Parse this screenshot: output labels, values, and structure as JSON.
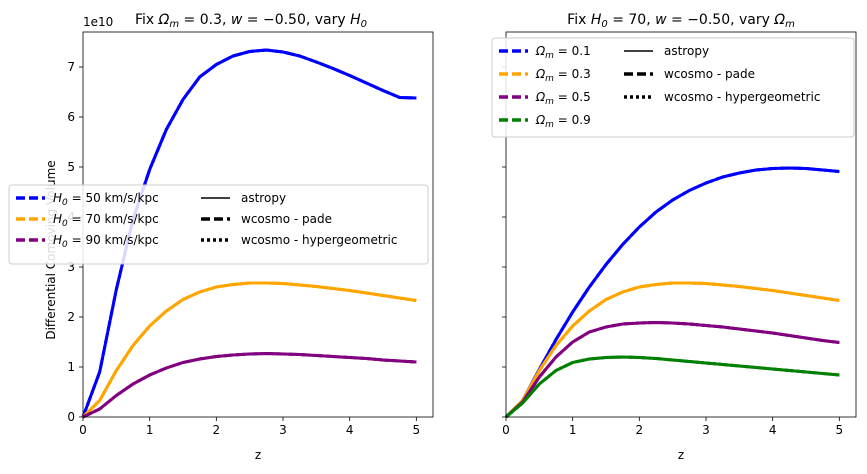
{
  "chart_data": [
    {
      "type": "line",
      "title": "Fix Ωm = 0.3, w = −0.50, vary H0",
      "title_parts": {
        "a": "Fix ",
        "om": "Ω",
        "om_sub": "m",
        "b": " = 0.3, ",
        "w": "w",
        "c": " = −0.50, vary ",
        "h": "H",
        "h_sub": "0"
      },
      "xlabel": "z",
      "ylabel": "Differential Comoving Volume",
      "exponent_label": "1e10",
      "xlim": [
        0,
        5.25
      ],
      "ylim": [
        0,
        7.7
      ],
      "xticks": [
        "0",
        "1",
        "2",
        "3",
        "4",
        "5"
      ],
      "yticks": [
        "0",
        "1",
        "2",
        "3",
        "4",
        "5",
        "6",
        "7"
      ],
      "legend_position": "center-left",
      "series": [
        {
          "name": "H0 = 50 km/s/kpc",
          "label_main": "H",
          "label_sub": "0",
          "label_rest": " = 50 km/s/kpc",
          "color": "#0000ff",
          "x": [
            0,
            0.25,
            0.5,
            0.75,
            1,
            1.25,
            1.5,
            1.75,
            2,
            2.25,
            2.5,
            2.75,
            3,
            3.25,
            3.5,
            3.75,
            4,
            4.25,
            4.5,
            4.75,
            5
          ],
          "y": [
            0,
            0.9,
            2.55,
            3.95,
            4.95,
            5.75,
            6.35,
            6.8,
            7.05,
            7.22,
            7.31,
            7.34,
            7.3,
            7.22,
            7.1,
            6.97,
            6.83,
            6.68,
            6.53,
            6.39,
            6.38
          ]
        },
        {
          "name": "H0 = 70 km/s/kpc",
          "label_main": "H",
          "label_sub": "0",
          "label_rest": " = 70 km/s/kpc",
          "color": "#ffa500",
          "x": [
            0,
            0.25,
            0.5,
            0.75,
            1,
            1.25,
            1.5,
            1.75,
            2,
            2.25,
            2.5,
            2.75,
            3,
            3.25,
            3.5,
            3.75,
            4,
            4.25,
            4.5,
            4.75,
            5
          ],
          "y": [
            0,
            0.33,
            0.93,
            1.43,
            1.82,
            2.12,
            2.35,
            2.5,
            2.6,
            2.65,
            2.68,
            2.68,
            2.67,
            2.64,
            2.61,
            2.57,
            2.53,
            2.48,
            2.43,
            2.38,
            2.33
          ]
        },
        {
          "name": "H0 = 90 km/s/kpc",
          "label_main": "H",
          "label_sub": "0",
          "label_rest": " = 90 km/s/kpc",
          "color": "#800080",
          "x": [
            0,
            0.25,
            0.5,
            0.75,
            1,
            1.25,
            1.5,
            1.75,
            2,
            2.25,
            2.5,
            2.75,
            3,
            3.25,
            3.5,
            3.75,
            4,
            4.25,
            4.5,
            4.75,
            5
          ],
          "y": [
            0,
            0.16,
            0.43,
            0.66,
            0.84,
            0.98,
            1.09,
            1.16,
            1.21,
            1.24,
            1.26,
            1.27,
            1.26,
            1.25,
            1.23,
            1.21,
            1.19,
            1.17,
            1.14,
            1.12,
            1.1
          ]
        }
      ],
      "style_legend": [
        {
          "name": "astropy",
          "style": "solid"
        },
        {
          "name": "wcosmo - pade",
          "style": "dashed"
        },
        {
          "name": "wcosmo - hypergeometric",
          "style": "dotted"
        }
      ]
    },
    {
      "type": "line",
      "title": "Fix H0 = 70, w = −0.50, vary Ωm",
      "title_parts": {
        "a": "Fix ",
        "h": "H",
        "h_sub": "0",
        "b": " = 70, ",
        "w": "w",
        "c": " = −0.50, vary ",
        "om": "Ω",
        "om_sub": "m"
      },
      "xlabel": "z",
      "xlim": [
        0,
        5.25
      ],
      "ylim": [
        0,
        7.7
      ],
      "xticks": [
        "0",
        "1",
        "2",
        "3",
        "4",
        "5"
      ],
      "legend_position": "top",
      "series": [
        {
          "name": "Ωm = 0.1",
          "label_main": "Ω",
          "label_sub": "m",
          "label_rest": " = 0.1",
          "color": "#0000ff",
          "x": [
            0,
            0.25,
            0.5,
            0.75,
            1,
            1.25,
            1.5,
            1.75,
            2,
            2.25,
            2.5,
            2.75,
            3,
            3.25,
            3.5,
            3.75,
            4,
            4.25,
            4.5,
            4.75,
            5
          ],
          "y": [
            0,
            0.33,
            0.95,
            1.55,
            2.1,
            2.6,
            3.05,
            3.45,
            3.8,
            4.1,
            4.34,
            4.53,
            4.68,
            4.8,
            4.88,
            4.94,
            4.97,
            4.98,
            4.97,
            4.94,
            4.91
          ]
        },
        {
          "name": "Ωm = 0.3",
          "label_main": "Ω",
          "label_sub": "m",
          "label_rest": " = 0.3",
          "color": "#ffa500",
          "x": [
            0,
            0.25,
            0.5,
            0.75,
            1,
            1.25,
            1.5,
            1.75,
            2,
            2.25,
            2.5,
            2.75,
            3,
            3.25,
            3.5,
            3.75,
            4,
            4.25,
            4.5,
            4.75,
            5
          ],
          "y": [
            0,
            0.33,
            0.93,
            1.43,
            1.82,
            2.12,
            2.35,
            2.5,
            2.6,
            2.65,
            2.68,
            2.68,
            2.67,
            2.64,
            2.61,
            2.57,
            2.53,
            2.48,
            2.43,
            2.38,
            2.33
          ]
        },
        {
          "name": "Ωm = 0.5",
          "label_main": "Ω",
          "label_sub": "m",
          "label_rest": " = 0.5",
          "color": "#800080",
          "x": [
            0,
            0.25,
            0.5,
            0.75,
            1,
            1.25,
            1.5,
            1.75,
            2,
            2.25,
            2.5,
            2.75,
            3,
            3.25,
            3.5,
            3.75,
            4,
            4.25,
            4.5,
            4.75,
            5
          ],
          "y": [
            0,
            0.3,
            0.8,
            1.2,
            1.5,
            1.7,
            1.8,
            1.86,
            1.88,
            1.89,
            1.88,
            1.86,
            1.83,
            1.8,
            1.76,
            1.72,
            1.68,
            1.63,
            1.58,
            1.53,
            1.49
          ]
        },
        {
          "name": "Ωm = 0.9",
          "label_main": "Ω",
          "label_sub": "m",
          "label_rest": " = 0.9",
          "color": "#008000",
          "x": [
            0,
            0.25,
            0.5,
            0.75,
            1,
            1.25,
            1.5,
            1.75,
            2,
            2.25,
            2.5,
            2.75,
            3,
            3.25,
            3.5,
            3.75,
            4,
            4.25,
            4.5,
            4.75,
            5
          ],
          "y": [
            0,
            0.28,
            0.66,
            0.93,
            1.09,
            1.16,
            1.19,
            1.2,
            1.19,
            1.17,
            1.14,
            1.11,
            1.08,
            1.05,
            1.02,
            0.99,
            0.96,
            0.93,
            0.9,
            0.87,
            0.84
          ]
        }
      ],
      "style_legend": [
        {
          "name": "astropy",
          "style": "solid"
        },
        {
          "name": "wcosmo - pade",
          "style": "dashed"
        },
        {
          "name": "wcosmo - hypergeometric",
          "style": "dotted"
        }
      ]
    }
  ]
}
